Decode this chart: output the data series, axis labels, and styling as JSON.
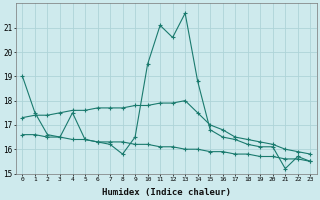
{
  "xlabel": "Humidex (Indice chaleur)",
  "background_color": "#ceeaed",
  "grid_color": "#aed4d8",
  "line_color": "#1a7a6e",
  "line1_y": [
    19.0,
    17.5,
    16.6,
    16.5,
    17.5,
    16.4,
    16.3,
    16.2,
    15.8,
    16.5,
    19.5,
    21.1,
    20.6,
    21.6,
    18.8,
    16.8,
    16.5,
    16.4,
    16.2,
    16.1,
    16.1,
    15.2,
    15.7,
    15.5
  ],
  "line2_y": [
    17.3,
    17.4,
    17.4,
    17.5,
    17.6,
    17.6,
    17.7,
    17.7,
    17.7,
    17.8,
    17.8,
    17.9,
    17.9,
    18.0,
    17.5,
    17.0,
    16.8,
    16.5,
    16.4,
    16.3,
    16.2,
    16.0,
    15.9,
    15.8
  ],
  "line3_y": [
    16.6,
    16.6,
    16.5,
    16.5,
    16.4,
    16.4,
    16.3,
    16.3,
    16.3,
    16.2,
    16.2,
    16.1,
    16.1,
    16.0,
    16.0,
    15.9,
    15.9,
    15.8,
    15.8,
    15.7,
    15.7,
    15.6,
    15.6,
    15.5
  ],
  "ylim": [
    15.0,
    22.0
  ],
  "yticks": [
    15,
    16,
    17,
    18,
    19,
    20,
    21
  ],
  "xticks": [
    0,
    1,
    2,
    3,
    4,
    5,
    6,
    7,
    8,
    9,
    10,
    11,
    12,
    13,
    14,
    15,
    16,
    17,
    18,
    19,
    20,
    21,
    22,
    23
  ]
}
